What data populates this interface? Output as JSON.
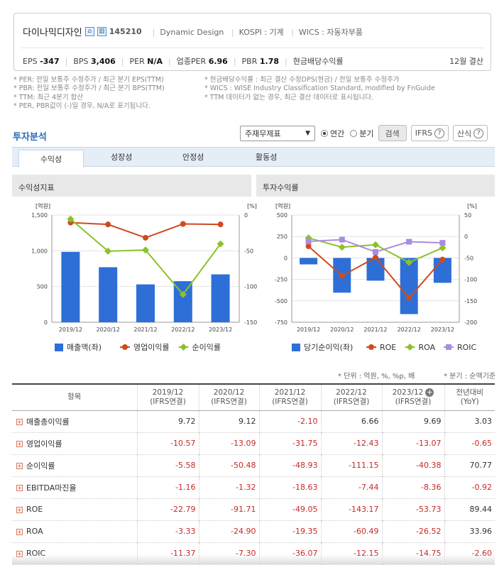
{
  "header": {
    "company_name": "다이나믹디자인",
    "code": "145210",
    "icons": [
      "home-icon",
      "building-icon"
    ],
    "meta": [
      "Dynamic Design",
      "KOSPI : 기계",
      "WICS : 자동차부품"
    ],
    "metrics": [
      {
        "label": "EPS",
        "value": "-347"
      },
      {
        "label": "BPS",
        "value": "3,406"
      },
      {
        "label": "PER",
        "value": "N/A"
      },
      {
        "label": "업종PER",
        "value": "6.96"
      },
      {
        "label": "PBR",
        "value": "1.78"
      },
      {
        "label": "현금배당수익률",
        "value": ""
      }
    ],
    "settlement": "12월 결산"
  },
  "notes": {
    "left": [
      "* PER: 전일 보통주 수정주가 / 최근 분기 EPS(TTM)",
      "* PBR: 전일 보통주 수정주가 / 최근 분기 BPS(TTM)",
      "* TTM: 최근 4분기 합산",
      "* PER, PBR값이 (-)일 경우, N/A로 표기됩니다."
    ],
    "right": [
      "* 현금배당수익률 : 최근 결산 수정DPS(현금) / 전일 보통주 수정주가",
      "* WICS : WISE Industry Classification Standard, modified by FnGuide",
      "* TTM 데이터가 없는 경우, 최근 결산 데이터로 표시됩니다."
    ]
  },
  "section": {
    "title": "투자분석",
    "select_value": "주재무제표",
    "radio_annual": "연간",
    "radio_quarter": "분기",
    "search_button": "검색",
    "ifrs_button": "IFRS",
    "formula_button": "산식"
  },
  "tabs": [
    "수익성",
    "성장성",
    "안정성",
    "활동성"
  ],
  "chart_data": [
    {
      "type": "bar",
      "title": "수익성지표",
      "left_axis_unit": "[억원]",
      "right_axis_unit": "[%]",
      "categories": [
        "2019/12",
        "2020/12",
        "2021/12",
        "2022/12",
        "2023/12"
      ],
      "left_ylim": [
        0,
        1500
      ],
      "left_ticks": [
        "1,500",
        "1,000",
        "500",
        "0"
      ],
      "right_ylim": [
        -150,
        0
      ],
      "right_ticks": [
        "0",
        "-50",
        "-100",
        "-150"
      ],
      "series": [
        {
          "name": "매출액(좌)",
          "kind": "bar",
          "axis": "left",
          "color": "#2d6fd6",
          "values": [
            985,
            770,
            530,
            575,
            670
          ]
        },
        {
          "name": "영업이익률",
          "kind": "line",
          "axis": "right",
          "color": "#d04a1f",
          "values": [
            -10.57,
            -13.09,
            -31.75,
            -12.43,
            -13.07
          ]
        },
        {
          "name": "순이익률",
          "kind": "line",
          "axis": "right",
          "color": "#8bc22a",
          "values": [
            -5.58,
            -50.48,
            -48.93,
            -111.15,
            -40.38
          ]
        }
      ]
    },
    {
      "type": "bar",
      "title": "투자수익률",
      "left_axis_unit": "[억원]",
      "right_axis_unit": "[%]",
      "categories": [
        "2019/12",
        "2020/12",
        "2021/12",
        "2022/12",
        "2023/12"
      ],
      "left_ylim": [
        -750,
        500
      ],
      "left_ticks": [
        "500",
        "250",
        "0",
        "-250",
        "-500",
        "-750"
      ],
      "right_ylim": [
        -200,
        50
      ],
      "right_ticks": [
        "50",
        "0",
        "-50",
        "-100",
        "-150",
        "-200"
      ],
      "series": [
        {
          "name": "당기순이익(좌)",
          "kind": "bar",
          "axis": "left",
          "color": "#2d6fd6",
          "values": [
            -75,
            -405,
            -265,
            -655,
            -290
          ]
        },
        {
          "name": "ROE",
          "kind": "line",
          "axis": "right",
          "color": "#d04a1f",
          "values": [
            -22.79,
            -91.71,
            -49.05,
            -143.17,
            -53.73
          ]
        },
        {
          "name": "ROA",
          "kind": "line",
          "axis": "right",
          "color": "#8bc22a",
          "values": [
            -3.33,
            -24.9,
            -19.35,
            -60.49,
            -26.52
          ]
        },
        {
          "name": "ROIC",
          "kind": "line",
          "axis": "right",
          "color": "#a98be0",
          "values": [
            -11.37,
            -7.3,
            -36.07,
            -12.15,
            -14.75
          ]
        }
      ]
    }
  ],
  "unit_note": "* 단위 : 억원, %, %p, 배",
  "quarter_note": "* 분기 : 순액기준",
  "table": {
    "headers": [
      [
        "항목",
        ""
      ],
      [
        "2019/12",
        "(IFRS연결)"
      ],
      [
        "2020/12",
        "(IFRS연결)"
      ],
      [
        "2021/12",
        "(IFRS연결)"
      ],
      [
        "2022/12",
        "(IFRS연결)"
      ],
      [
        "2023/12",
        "(IFRS연결)"
      ],
      [
        "전년대비",
        "(YoY)"
      ]
    ],
    "rows": [
      {
        "label": "매출총이익률",
        "values": [
          "9.72",
          "9.12",
          "-2.10",
          "6.66",
          "9.69",
          "3.03"
        ]
      },
      {
        "label": "영업이익률",
        "values": [
          "-10.57",
          "-13.09",
          "-31.75",
          "-12.43",
          "-13.07",
          "-0.65"
        ]
      },
      {
        "label": "순이익률",
        "values": [
          "-5.58",
          "-50.48",
          "-48.93",
          "-111.15",
          "-40.38",
          "70.77"
        ]
      },
      {
        "label": "EBITDA마진율",
        "values": [
          "-1.16",
          "-1.32",
          "-18.63",
          "-7.44",
          "-8.36",
          "-0.92"
        ]
      },
      {
        "label": "ROE",
        "values": [
          "-22.79",
          "-91.71",
          "-49.05",
          "-143.17",
          "-53.73",
          "89.44"
        ]
      },
      {
        "label": "ROA",
        "values": [
          "-3.33",
          "-24.90",
          "-19.35",
          "-60.49",
          "-26.52",
          "33.96"
        ]
      },
      {
        "label": "ROIC",
        "values": [
          "-11.37",
          "-7.30",
          "-36.07",
          "-12.15",
          "-14.75",
          "-2.60"
        ]
      }
    ]
  }
}
